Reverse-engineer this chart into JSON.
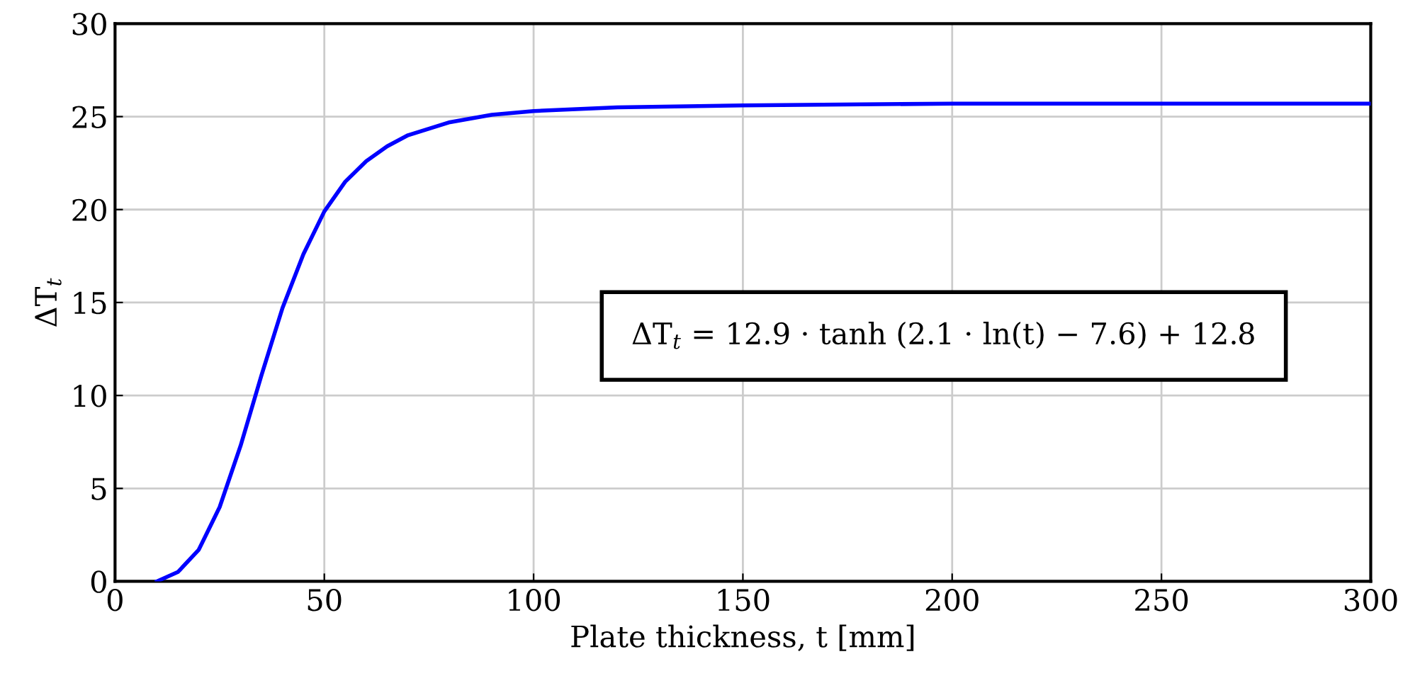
{
  "chart_data": {
    "type": "line",
    "xlabel": "Plate thickness, t [mm]",
    "ylabel": "ΔT$_{t}$",
    "x": [
      10,
      15,
      20,
      25,
      30,
      35,
      40,
      45,
      50,
      55,
      60,
      65,
      70,
      80,
      90,
      100,
      120,
      150,
      200,
      250,
      300
    ],
    "series": [
      {
        "color": "#0000ff",
        "values": [
          0.0,
          0.5,
          1.7,
          4.0,
          7.3,
          11.1,
          14.7,
          17.6,
          19.9,
          21.5,
          22.6,
          23.4,
          24.0,
          24.7,
          25.1,
          25.3,
          25.5,
          25.6,
          25.7,
          25.7,
          25.7
        ]
      }
    ],
    "xlim": [
      0,
      300
    ],
    "ylim": [
      0,
      30
    ],
    "xticks": [
      0,
      50,
      100,
      150,
      200,
      250,
      300
    ],
    "yticks": [
      0,
      5,
      10,
      15,
      20,
      25,
      30
    ],
    "grid": true,
    "legend": false,
    "marker": "none",
    "line_style": "solid",
    "annotations": [
      "ΔT$_{t}$ = 12.9 · tanh (2.1 · ln(t) − 7.6) + 12.8"
    ]
  }
}
